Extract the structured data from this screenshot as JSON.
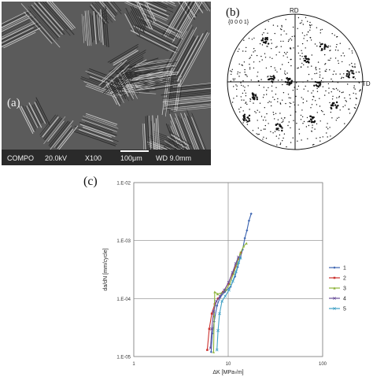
{
  "panel_a": {
    "label": "(a)",
    "info_bar": {
      "mode": "COMPO",
      "voltage": "20.0kV",
      "magnification": "X100",
      "scale": "100μm",
      "working_distance": "WD 9.0mm"
    }
  },
  "panel_b": {
    "label": "(b)",
    "plane": "{0 0 0 1}",
    "top_axis": "RD",
    "right_axis": "TD"
  },
  "panel_c": {
    "label": "(c)"
  },
  "chart_data": {
    "type": "line",
    "xlabel": "ΔK [MPa√m]",
    "ylabel": "da/dN [mm/cycle]",
    "x_scale": "log",
    "y_scale": "log",
    "xlim": [
      1,
      100
    ],
    "ylim": [
      1e-05,
      0.01
    ],
    "x_ticks": [
      "1",
      "10",
      "100"
    ],
    "y_ticks": [
      "1.E-05",
      "1.E-04",
      "1.E-03",
      "1.E-02"
    ],
    "grid": true,
    "legend_position": "right",
    "series": [
      {
        "name": "1",
        "color": "#3b63b0",
        "marker": "diamond",
        "x": [
          6.6,
          6.8,
          7.1,
          7.6,
          8.2,
          9.2,
          10.6,
          11.8,
          12.6,
          13.4,
          14.2,
          15.0,
          15.8,
          16.6,
          17.5
        ],
        "y": [
          1.2e-05,
          2.5e-05,
          4e-05,
          7.5e-05,
          0.000105,
          0.00013,
          0.00016,
          0.00024,
          0.00035,
          0.0005,
          0.0007,
          0.0011,
          0.0015,
          0.0022,
          0.0029
        ]
      },
      {
        "name": "2",
        "color": "#cc3330",
        "marker": "square",
        "x": [
          6.0,
          6.3,
          6.7,
          7.2,
          7.8,
          8.8,
          10.0,
          11.0,
          12.0,
          12.8,
          13.6
        ],
        "y": [
          1.3e-05,
          3e-05,
          5.5e-05,
          8e-05,
          0.0001,
          0.00013,
          0.00018,
          0.00026,
          0.00036,
          0.00048,
          0.00062
        ]
      },
      {
        "name": "3",
        "color": "#8eb33b",
        "marker": "triangle",
        "x": [
          7.0,
          7.1,
          7.2,
          7.7,
          8.5,
          9.4,
          10.4,
          11.4,
          12.4,
          13.4,
          14.6,
          15.6
        ],
        "y": [
          1.2e-05,
          5e-05,
          0.00013,
          0.00012,
          0.000125,
          0.00014,
          0.00018,
          0.00027,
          0.0004,
          0.0006,
          0.0008,
          0.0009
        ]
      },
      {
        "name": "4",
        "color": "#6a4f9a",
        "marker": "x",
        "x": [
          6.5,
          6.7,
          7.0,
          7.5,
          8.2,
          9.1,
          10.1,
          11.1,
          12.0,
          12.8
        ],
        "y": [
          1.4e-05,
          3e-05,
          6e-05,
          9e-05,
          0.00011,
          0.00014,
          0.00019,
          0.00028,
          0.0004,
          0.00052
        ]
      },
      {
        "name": "5",
        "color": "#3fa0c4",
        "marker": "asterisk",
        "x": [
          7.6,
          7.8,
          8.1,
          8.6,
          9.3,
          10.2,
          11.2,
          12.1,
          12.9,
          13.5
        ],
        "y": [
          1.3e-05,
          2.8e-05,
          5.5e-05,
          9e-05,
          0.00011,
          0.00014,
          0.0002,
          0.00029,
          0.00042,
          0.0005
        ]
      }
    ]
  }
}
